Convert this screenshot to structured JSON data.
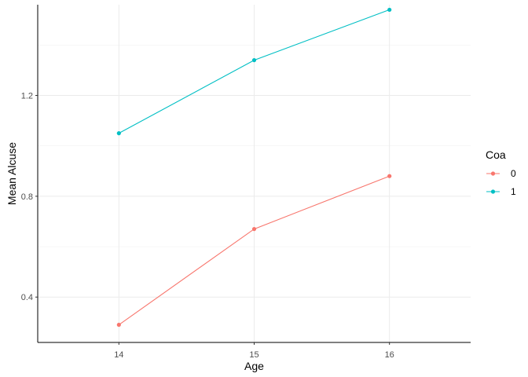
{
  "chart_data": {
    "type": "line",
    "xlabel": "Age",
    "ylabel": "Mean Alcuse",
    "x": [
      14,
      15,
      16
    ],
    "x_tick_labels": [
      "14",
      "15",
      "16"
    ],
    "xlim": [
      13.4,
      16.6
    ],
    "y_ticks": [
      0.4,
      0.8,
      1.2
    ],
    "y_tick_labels": [
      "0.4",
      "0.8",
      "1.2"
    ],
    "ylim": [
      0.22,
      1.56
    ],
    "grid": true,
    "legend": {
      "title": "Coa",
      "placement": "right"
    },
    "series": [
      {
        "name": "0",
        "color": "#F8766D",
        "values": [
          0.29,
          0.67,
          0.88
        ]
      },
      {
        "name": "1",
        "color": "#00BFC4",
        "values": [
          1.05,
          1.34,
          1.54
        ]
      }
    ]
  }
}
